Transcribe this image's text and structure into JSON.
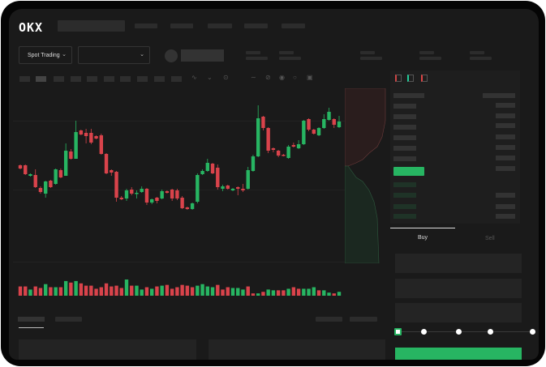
{
  "header": {
    "logo": "OKX",
    "nav_items": 5
  },
  "toolbar": {
    "market_select": "Spot Trading",
    "pair_select": ""
  },
  "trade": {
    "tabs": [
      {
        "label": "Buy",
        "active": true
      },
      {
        "label": "Sell",
        "active": false
      }
    ],
    "leverage_slider": {
      "value_percent": 0,
      "stops": [
        0,
        25,
        50,
        75,
        100
      ]
    }
  },
  "colors": {
    "up": "#27b562",
    "down": "#d9434b",
    "background": "#1a1a1a",
    "frame": "#050505"
  },
  "icons": [
    "order-book-both-icon",
    "order-book-bids-icon",
    "order-book-asks-icon",
    "drawing-icon",
    "camera-icon",
    "settings-icon",
    "fullscreen-icon"
  ],
  "chart_data": {
    "type": "candlestick",
    "title": "",
    "xlabel": "",
    "ylabel": "",
    "ylim": [
      -70,
      152
    ],
    "grid": true,
    "candles": [
      [
        57,
        58,
        52,
        53
      ],
      [
        57,
        58,
        45,
        46
      ],
      [
        44,
        47,
        43,
        46
      ],
      [
        45,
        52,
        29,
        30
      ],
      [
        29,
        31,
        22,
        24
      ],
      [
        22,
        38,
        17,
        37
      ],
      [
        38,
        39,
        29,
        30
      ],
      [
        34,
        53,
        33,
        52
      ],
      [
        51,
        53,
        41,
        42
      ],
      [
        44,
        84,
        44,
        75
      ],
      [
        74,
        77,
        64,
        65
      ],
      [
        65,
        112,
        65,
        98
      ],
      [
        100,
        101,
        94,
        95
      ],
      [
        97,
        102,
        84,
        93
      ],
      [
        97,
        102,
        83,
        85
      ],
      [
        93,
        94,
        89,
        90
      ],
      [
        94,
        96,
        70,
        71
      ],
      [
        71,
        72,
        46,
        47
      ],
      [
        51,
        52,
        44,
        48
      ],
      [
        49,
        50,
        12,
        17
      ],
      [
        17,
        19,
        14,
        15
      ],
      [
        16,
        28,
        13,
        26
      ],
      [
        27,
        30,
        20,
        22
      ],
      [
        22,
        26,
        16,
        23
      ],
      [
        24,
        31,
        23,
        28
      ],
      [
        28,
        29,
        8,
        11
      ],
      [
        11,
        16,
        9,
        15
      ],
      [
        17,
        18,
        10,
        13
      ],
      [
        16,
        27,
        15,
        25
      ],
      [
        25,
        26,
        22,
        23
      ],
      [
        27,
        28,
        13,
        16
      ],
      [
        26,
        28,
        14,
        16
      ],
      [
        17,
        19,
        3,
        4
      ],
      [
        5,
        6,
        2,
        3
      ],
      [
        3,
        11,
        2,
        10
      ],
      [
        12,
        47,
        10,
        45
      ],
      [
        46,
        52,
        45,
        50
      ],
      [
        50,
        65,
        49,
        60
      ],
      [
        59,
        60,
        46,
        47
      ],
      [
        54,
        58,
        27,
        30
      ],
      [
        28,
        33,
        25,
        31
      ],
      [
        32,
        33,
        27,
        28
      ],
      [
        26,
        29,
        25,
        28
      ],
      [
        30,
        31,
        20,
        28
      ],
      [
        28,
        34,
        24,
        26
      ],
      [
        28,
        55,
        27,
        51
      ],
      [
        50,
        70,
        49,
        68
      ],
      [
        68,
        131,
        67,
        115
      ],
      [
        117,
        118,
        100,
        103
      ],
      [
        103,
        104,
        72,
        75
      ],
      [
        78,
        79,
        73,
        76
      ],
      [
        75,
        76,
        67,
        69
      ],
      [
        70,
        71,
        68,
        69
      ],
      [
        66,
        82,
        65,
        80
      ],
      [
        82,
        85,
        79,
        80
      ],
      [
        78,
        88,
        77,
        83
      ],
      [
        83,
        113,
        82,
        112
      ],
      [
        114,
        115,
        99,
        101
      ],
      [
        101,
        102,
        95,
        96
      ],
      [
        94,
        104,
        93,
        103
      ],
      [
        103,
        120,
        102,
        114
      ],
      [
        113,
        128,
        112,
        123
      ],
      [
        114,
        115,
        103,
        107
      ],
      [
        104,
        118,
        103,
        111
      ]
    ],
    "volume": [
      12,
      12,
      8,
      12,
      10,
      15,
      11,
      11,
      11,
      19,
      17,
      19,
      16,
      13,
      13,
      9,
      11,
      16,
      12,
      13,
      10,
      21,
      13,
      13,
      8,
      11,
      9,
      12,
      13,
      14,
      9,
      11,
      14,
      13,
      11,
      13,
      15,
      12,
      11,
      14,
      8,
      11,
      10,
      10,
      8,
      12,
      3,
      3,
      5,
      8,
      7,
      7,
      7,
      9,
      11,
      9,
      9,
      9,
      11,
      7,
      7,
      4,
      3,
      5
    ],
    "volume_up": [
      0,
      0,
      1,
      0,
      0,
      1,
      0,
      1,
      0,
      1,
      0,
      1,
      0,
      0,
      0,
      0,
      0,
      0,
      0,
      0,
      0,
      1,
      0,
      1,
      1,
      0,
      1,
      0,
      1,
      0,
      0,
      0,
      0,
      0,
      0,
      1,
      1,
      1,
      1,
      0,
      0,
      0,
      1,
      1,
      1,
      0,
      0,
      1,
      0,
      1,
      1,
      0,
      0,
      1,
      0,
      0,
      1,
      1,
      1,
      0,
      1,
      1,
      0,
      1
    ]
  }
}
